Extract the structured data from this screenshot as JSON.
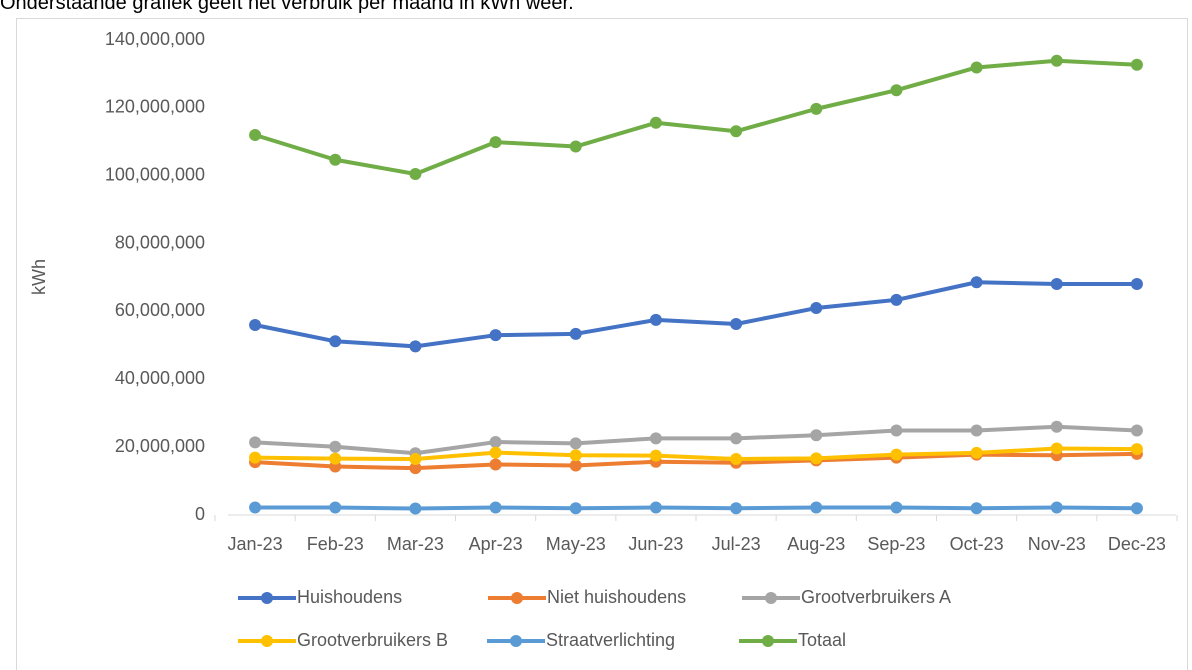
{
  "caption": "Onderstaande grafiek geeft het verbruik per maand in kWh weer.",
  "chart_data": {
    "type": "line",
    "ylabel": "kWh",
    "categories": [
      "Jan-23",
      "Feb-23",
      "Mar-23",
      "Apr-23",
      "May-23",
      "Jun-23",
      "Jul-23",
      "Aug-23",
      "Sep-23",
      "Oct-23",
      "Nov-23",
      "Dec-23"
    ],
    "ylim": [
      0,
      140000000
    ],
    "yticks": [
      0,
      {
        "value": 20000000,
        "label": "20,000,000"
      },
      {
        "value": 40000000,
        "label": "40,000,000"
      },
      {
        "value": 60000000,
        "label": "60,000,000"
      },
      {
        "value": 80000000,
        "label": "80,000,000"
      },
      {
        "value": 100000000,
        "label": "100,000,000"
      },
      {
        "value": 120000000,
        "label": "120,000,000"
      },
      {
        "value": 140000000,
        "label": "140,000,000"
      }
    ],
    "legend": "bottom",
    "series": [
      {
        "name": "Huishoudens",
        "color": "#4472c4",
        "values": [
          56000000,
          51200000,
          49700000,
          53000000,
          53400000,
          57500000,
          56300000,
          61000000,
          63400000,
          68600000,
          68100000,
          68100000
        ]
      },
      {
        "name": "Niet huishoudens",
        "color": "#ed7d31",
        "values": [
          15600000,
          14300000,
          13800000,
          14900000,
          14600000,
          15700000,
          15400000,
          16100000,
          16900000,
          17800000,
          17600000,
          18000000
        ]
      },
      {
        "name": "Grootverbruikers A",
        "color": "#a5a5a5",
        "values": [
          21400000,
          20100000,
          18200000,
          21500000,
          21100000,
          22600000,
          22600000,
          23500000,
          24900000,
          24900000,
          26000000,
          24900000
        ]
      },
      {
        "name": "Grootverbruikers B",
        "color": "#ffc000",
        "values": [
          16900000,
          16600000,
          16500000,
          18400000,
          17600000,
          17500000,
          16500000,
          16700000,
          17800000,
          18300000,
          19600000,
          19400000
        ]
      },
      {
        "name": "Straatverlichting",
        "color": "#5b9bd5",
        "values": [
          2200000,
          2200000,
          1900000,
          2200000,
          2000000,
          2200000,
          2000000,
          2200000,
          2200000,
          2000000,
          2200000,
          2000000
        ]
      },
      {
        "name": "Totaal",
        "color": "#70ad47",
        "values": [
          112000000,
          104700000,
          100500000,
          109900000,
          108600000,
          115600000,
          113100000,
          119700000,
          125200000,
          131900000,
          133900000,
          132700000
        ]
      }
    ]
  }
}
